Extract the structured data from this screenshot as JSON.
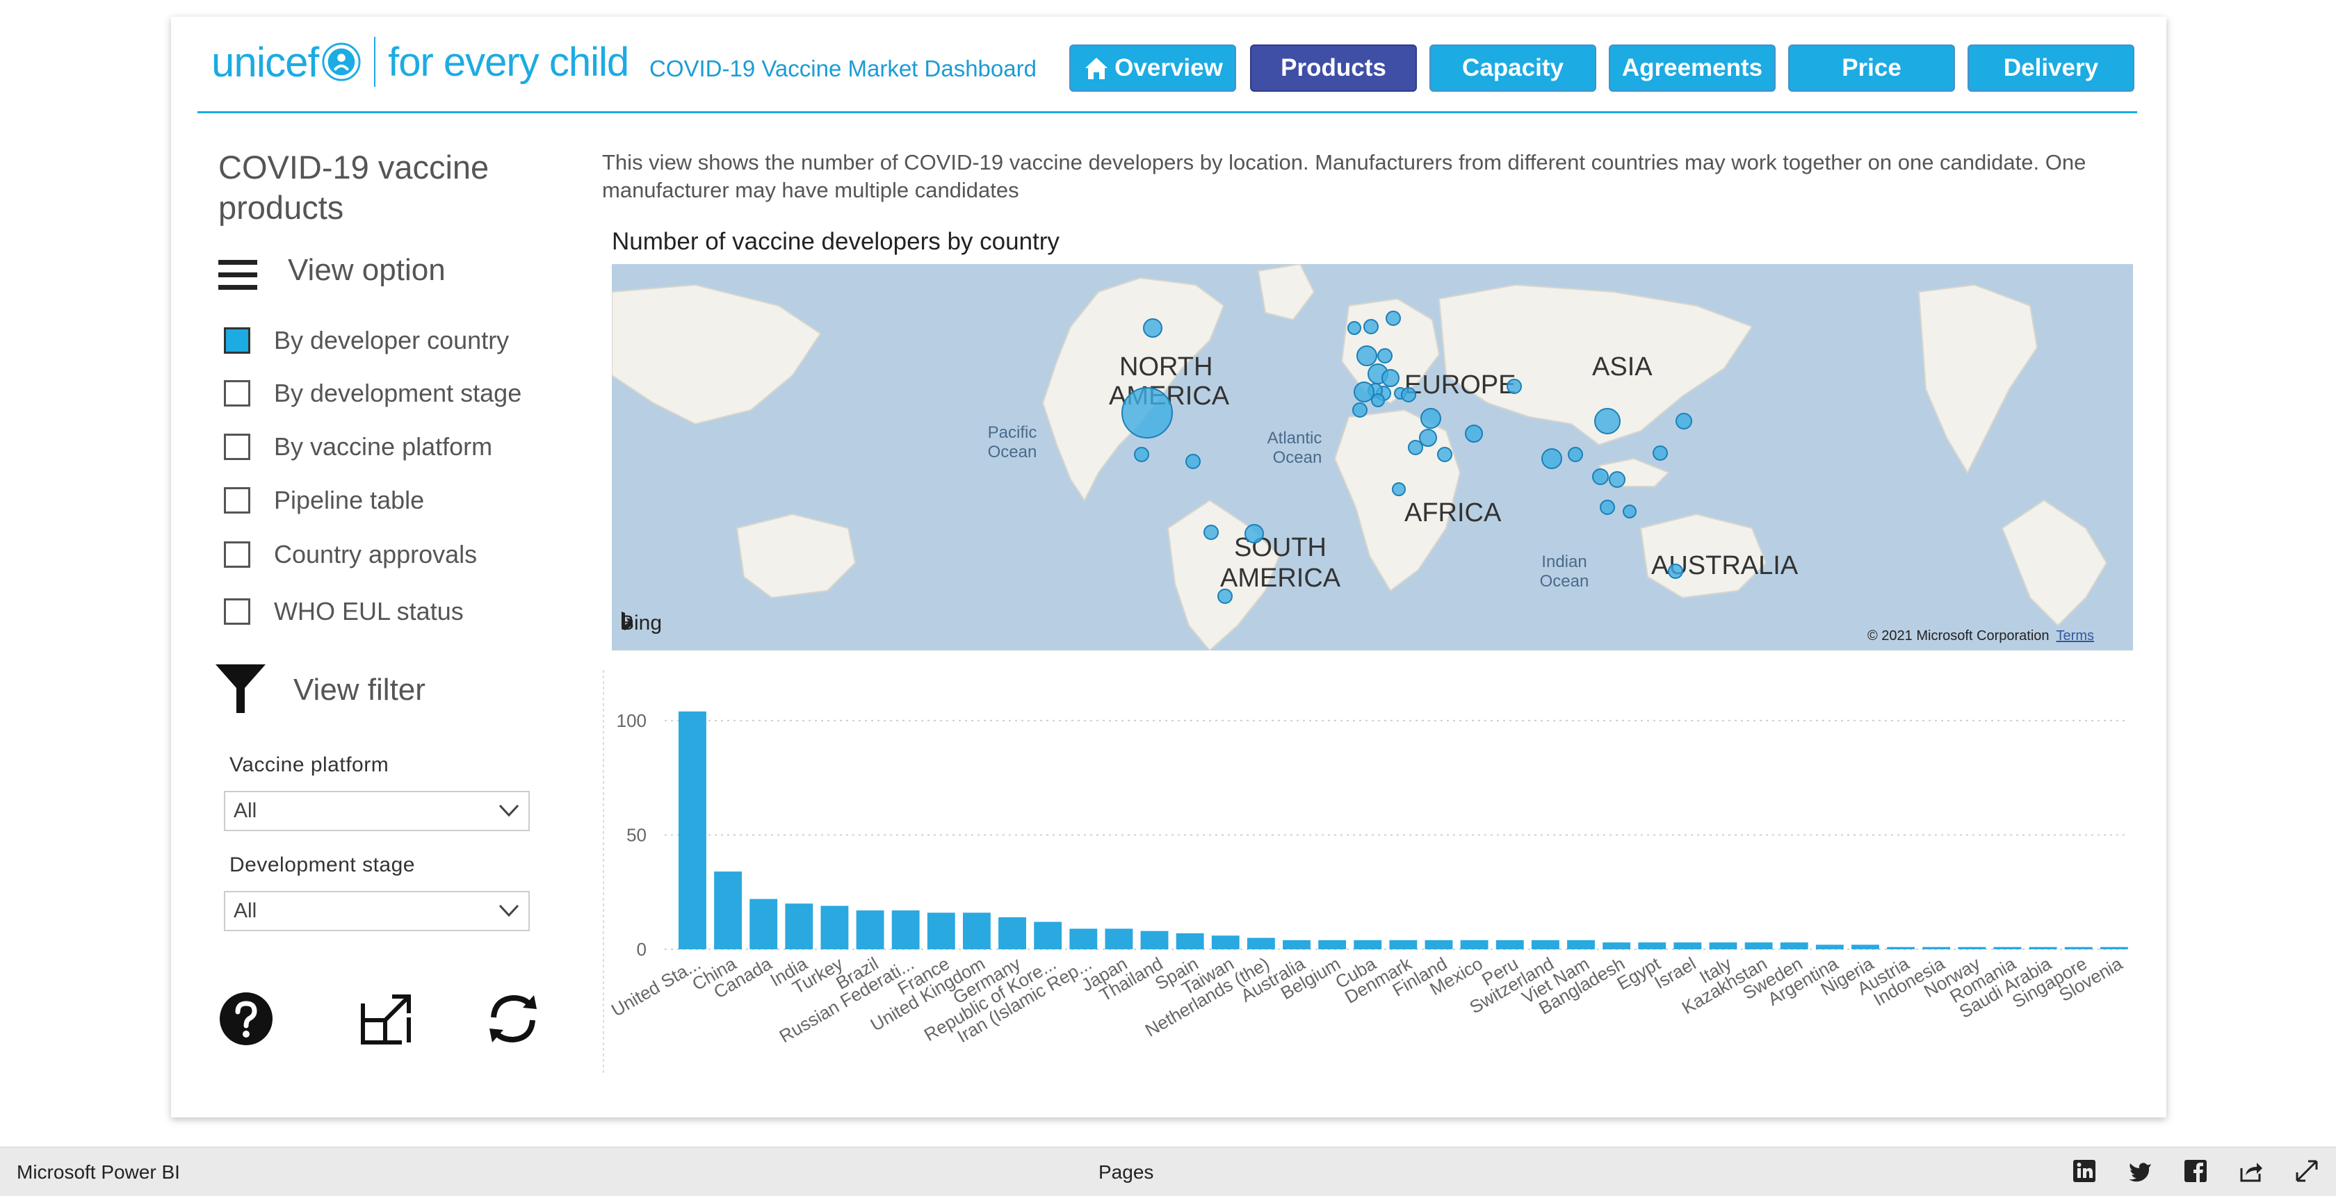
{
  "header": {
    "logo_brand": "unicef",
    "logo_tagline": "for every child",
    "dashboard_title": "COVID-19 Vaccine Market Dashboard",
    "nav": [
      {
        "label": "Overview",
        "icon": "home-icon"
      },
      {
        "label": "Products"
      },
      {
        "label": "Capacity"
      },
      {
        "label": "Agreements"
      },
      {
        "label": "Price"
      },
      {
        "label": "Delivery"
      }
    ],
    "active_tab": "Products"
  },
  "sidebar": {
    "title": "COVID-19 vaccine products",
    "view_option_label": "View option",
    "options": [
      {
        "label": "By developer country",
        "checked": true
      },
      {
        "label": "By development stage",
        "checked": false
      },
      {
        "label": "By vaccine platform",
        "checked": false
      },
      {
        "label": "Pipeline table",
        "checked": false
      },
      {
        "label": "Country approvals",
        "checked": false
      },
      {
        "label": "WHO EUL status",
        "checked": false
      }
    ],
    "view_filter_label": "View filter",
    "filters": [
      {
        "label": "Vaccine platform",
        "value": "All"
      },
      {
        "label": "Development stage",
        "value": "All"
      }
    ]
  },
  "main": {
    "description": "This view shows the number of COVID-19 vaccine developers by location. Manufacturers from different countries may work together on one candidate. One manufacturer may have multiple candidates",
    "map_title": "Number of vaccine developers by country",
    "map": {
      "continent_labels": [
        "NORTH",
        "AMERICA",
        "EUROPE",
        "ASIA",
        "AFRICA",
        "SOUTH",
        "AMERICA",
        "AUSTRALIA"
      ],
      "ocean_labels": [
        "Pacific",
        "Ocean",
        "Atlantic",
        "Ocean",
        "Indian",
        "Ocean"
      ],
      "bing_label": "Bing",
      "copyright": "© 2021 Microsoft Corporation",
      "terms": "Terms"
    }
  },
  "chart_data": {
    "type": "bar",
    "title": "",
    "categories": [
      "United Sta...",
      "China",
      "Canada",
      "India",
      "Turkey",
      "Brazil",
      "Russian Federati...",
      "France",
      "United Kingdom",
      "Germany",
      "Republic of Kore...",
      "Iran (Islamic Rep...",
      "Japan",
      "Thailand",
      "Spain",
      "Taiwan",
      "Netherlands (the)",
      "Australia",
      "Belgium",
      "Cuba",
      "Denmark",
      "Finland",
      "Mexico",
      "Peru",
      "Switzerland",
      "Viet Nam",
      "Bangladesh",
      "Egypt",
      "Israel",
      "Italy",
      "Kazakhstan",
      "Sweden",
      "Argentina",
      "Nigeria",
      "Austria",
      "Indonesia",
      "Norway",
      "Romania",
      "Saudi Arabia",
      "Singapore",
      "Slovenia"
    ],
    "category_labels_shown": [
      "United Sta...",
      "China",
      "Canada",
      "India",
      "Turkey",
      "Brazil",
      "Russian Federati...",
      "France",
      "United Kingdom",
      "Germany",
      "Republic of Kore...",
      "Iran (Islamic Rep...",
      "Japan",
      "Thailand",
      "Spain",
      "Taiwan",
      "Netherlands (the)",
      "Australia",
      "Belgium",
      "Cuba",
      "Denmark",
      "Finland",
      "Mexico",
      "Peru",
      "Switzerland",
      "Viet Nam",
      "Bangladesh",
      "Egypt",
      "Israel",
      "Italy",
      "Kazakhstan",
      "Sweden",
      "Argentina",
      "Nigeria",
      "Austria",
      "Indonesia",
      "Norway",
      "Romania",
      "Saudi Arabia",
      "Singapore",
      "Slovenia"
    ],
    "values": [
      104,
      34,
      22,
      20,
      19,
      17,
      17,
      16,
      16,
      14,
      12,
      9,
      9,
      8,
      7,
      6,
      5,
      4,
      4,
      4,
      4,
      4,
      4,
      4,
      4,
      4,
      3,
      3,
      3,
      3,
      3,
      3,
      2,
      2,
      1,
      1,
      1,
      1,
      1,
      1,
      1
    ],
    "xlabel": "",
    "ylabel": "",
    "ylim": [
      0,
      110
    ],
    "yticks": [
      0,
      50,
      100
    ],
    "bar_color": "#2aa8e0"
  },
  "footer": {
    "brand": "Microsoft Power BI",
    "pages": "Pages",
    "icons": [
      "linkedin-icon",
      "twitter-icon",
      "facebook-icon",
      "share-icon",
      "fullscreen-icon"
    ]
  }
}
